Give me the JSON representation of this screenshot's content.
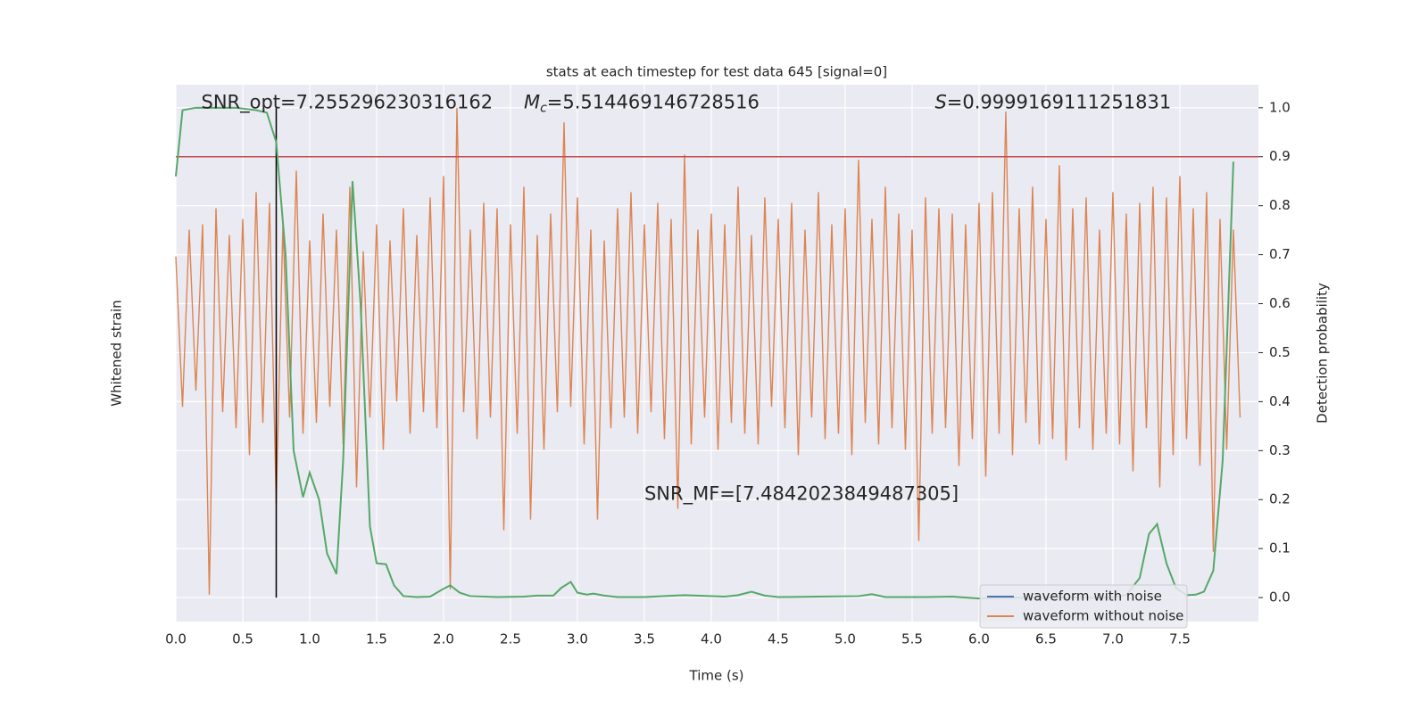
{
  "chart_data": {
    "type": "line",
    "title": "stats at each timestep for test data 645 [signal=0]",
    "xlabel": "Time (s)",
    "ylabel": "Whitened strain",
    "y2label": "Detection probability",
    "xlim": [
      0,
      8.087
    ],
    "ylim": [
      -5.5,
      4.5
    ],
    "y2lim": [
      -0.049,
      1.047
    ],
    "xticks": [
      {
        "value": 0,
        "label": "0.0"
      },
      {
        "value": 0.5,
        "label": "0.5"
      },
      {
        "value": 1,
        "label": "1.0"
      },
      {
        "value": 1.5,
        "label": "1.5"
      },
      {
        "value": 2,
        "label": "2.0"
      },
      {
        "value": 2.5,
        "label": "2.5"
      },
      {
        "value": 3,
        "label": "3.0"
      },
      {
        "value": 3.5,
        "label": "3.5"
      },
      {
        "value": 4,
        "label": "4.0"
      },
      {
        "value": 4.5,
        "label": "4.5"
      },
      {
        "value": 5,
        "label": "5.0"
      },
      {
        "value": 5.5,
        "label": "5.5"
      },
      {
        "value": 6,
        "label": "6.0"
      },
      {
        "value": 6.5,
        "label": "6.5"
      },
      {
        "value": 7,
        "label": "7.0"
      },
      {
        "value": 7.5,
        "label": "7.5"
      }
    ],
    "y2ticks": [
      {
        "value": 0,
        "label": "0.0"
      },
      {
        "value": 0.1,
        "label": "0.1"
      },
      {
        "value": 0.2,
        "label": "0.2"
      },
      {
        "value": 0.3,
        "label": "0.3"
      },
      {
        "value": 0.4,
        "label": "0.4"
      },
      {
        "value": 0.5,
        "label": "0.5"
      },
      {
        "value": 0.6,
        "label": "0.6"
      },
      {
        "value": 0.7,
        "label": "0.7"
      },
      {
        "value": 0.8,
        "label": "0.8"
      },
      {
        "value": 0.9,
        "label": "0.9"
      },
      {
        "value": 1,
        "label": "1.0"
      }
    ],
    "grid": true,
    "legend": "lower right",
    "series": [
      {
        "name": "waveform with noise",
        "color": "#4c72b0",
        "x": [],
        "values": []
      },
      {
        "name": "waveform without noise",
        "color": "#dd8452",
        "x": [
          0,
          0.05,
          0.1,
          0.15,
          0.2,
          0.25,
          0.3,
          0.35,
          0.4,
          0.45,
          0.5,
          0.55,
          0.6,
          0.65,
          0.7,
          0.75,
          0.8,
          0.85,
          0.9,
          0.95,
          1,
          1.05,
          1.1,
          1.15,
          1.2,
          1.25,
          1.3,
          1.35,
          1.4,
          1.45,
          1.5,
          1.55,
          1.6,
          1.65,
          1.7,
          1.75,
          1.8,
          1.85,
          1.9,
          1.95,
          2,
          2.05,
          2.1,
          2.15,
          2.2,
          2.25,
          2.3,
          2.35,
          2.4,
          2.45,
          2.5,
          2.55,
          2.6,
          2.65,
          2.7,
          2.75,
          2.8,
          2.85,
          2.9,
          2.95,
          3,
          3.05,
          3.1,
          3.15,
          3.2,
          3.25,
          3.3,
          3.35,
          3.4,
          3.45,
          3.5,
          3.55,
          3.6,
          3.65,
          3.7,
          3.75,
          3.8,
          3.85,
          3.9,
          3.95,
          4,
          4.05,
          4.1,
          4.15,
          4.2,
          4.25,
          4.3,
          4.35,
          4.4,
          4.45,
          4.5,
          4.55,
          4.6,
          4.65,
          4.7,
          4.75,
          4.8,
          4.85,
          4.9,
          4.95,
          5,
          5.05,
          5.1,
          5.15,
          5.2,
          5.25,
          5.3,
          5.35,
          5.4,
          5.45,
          5.5,
          5.55,
          5.6,
          5.65,
          5.7,
          5.75,
          5.8,
          5.85,
          5.9,
          5.95,
          6,
          6.05,
          6.1,
          6.15,
          6.2,
          6.25,
          6.3,
          6.35,
          6.4,
          6.45,
          6.5,
          6.55,
          6.6,
          6.65,
          6.7,
          6.75,
          6.8,
          6.85,
          6.9,
          6.95,
          7,
          7.05,
          7.1,
          7.15,
          7.2,
          7.25,
          7.3,
          7.35,
          7.4,
          7.45,
          7.5,
          7.55,
          7.6,
          7.65,
          7.7,
          7.75,
          7.8,
          7.85,
          7.9,
          7.95
        ],
        "values": [
          1.3,
          -1.5,
          1.8,
          -1.2,
          1.9,
          -5.0,
          2.2,
          -1.6,
          1.7,
          -1.9,
          2.0,
          -2.4,
          2.5,
          -1.8,
          2.3,
          -3.3,
          1.9,
          -1.7,
          2.9,
          -2.0,
          1.6,
          -1.8,
          2.1,
          -1.5,
          1.8,
          -2.2,
          2.6,
          -3.0,
          1.4,
          -1.7,
          1.9,
          -2.3,
          1.6,
          -1.4,
          2.2,
          -2.0,
          1.7,
          -1.6,
          2.4,
          -1.9,
          2.8,
          -4.9,
          4.07,
          -1.6,
          1.8,
          -2.1,
          2.3,
          -1.7,
          2.2,
          -3.8,
          1.9,
          -2.0,
          2.6,
          -3.6,
          1.7,
          -2.3,
          2.1,
          -1.6,
          3.8,
          -1.5,
          2.4,
          -2.2,
          1.8,
          -3.6,
          1.6,
          -1.9,
          2.2,
          -1.7,
          2.5,
          -2.0,
          1.9,
          -1.6,
          2.3,
          -2.1,
          2.0,
          -3.4,
          3.2,
          -2.2,
          1.8,
          -1.7,
          2.1,
          -2.3,
          1.9,
          -1.8,
          2.6,
          -2.0,
          1.7,
          -2.2,
          2.4,
          -1.5,
          2.0,
          -1.9,
          2.3,
          -2.4,
          1.8,
          -1.7,
          2.5,
          -2.1,
          1.9,
          -2.0,
          2.2,
          -2.4,
          3.1,
          -1.8,
          2.0,
          -2.2,
          2.6,
          -1.9,
          2.1,
          -2.3,
          1.8,
          -4.0,
          2.4,
          -2.0,
          2.2,
          -1.9,
          2.1,
          -2.6,
          1.9,
          -2.1,
          2.3,
          -2.8,
          2.5,
          -2.0,
          4.0,
          -2.4,
          2.2,
          -1.8,
          2.6,
          -2.2,
          2.0,
          -2.1,
          3.0,
          -2.5,
          2.2,
          -1.9,
          2.4,
          -2.3,
          1.8,
          -2.0,
          2.5,
          -2.2,
          2.1,
          -2.7,
          2.3,
          -1.9,
          2.6,
          -3.0,
          2.4,
          -2.4,
          2.8,
          -2.1,
          2.2,
          -2.6,
          2.5,
          -4.2,
          2.0,
          -2.3,
          1.8,
          -1.7
        ]
      },
      {
        "color": "#55a868",
        "axis": "y2",
        "x": [
          0,
          0.05,
          0.15,
          0.3,
          0.45,
          0.6,
          0.68,
          0.75,
          0.82,
          0.88,
          0.95,
          1,
          1.07,
          1.13,
          1.2,
          1.25,
          1.32,
          1.38,
          1.45,
          1.5,
          1.57,
          1.63,
          1.7,
          1.8,
          1.9,
          2,
          2.05,
          2.12,
          2.2,
          2.4,
          2.6,
          2.7,
          2.82,
          2.88,
          2.95,
          3,
          3.07,
          3.12,
          3.2,
          3.3,
          3.5,
          3.8,
          4.1,
          4.2,
          4.3,
          4.4,
          4.5,
          4.8,
          5.1,
          5.2,
          5.3,
          5.6,
          5.8,
          6,
          6.3,
          6.7,
          7,
          7.1,
          7.2,
          7.27,
          7.33,
          7.4,
          7.47,
          7.55,
          7.62,
          7.68,
          7.75,
          7.82,
          7.9
        ],
        "values": [
          0.86,
          0.995,
          1.0,
          1.0,
          1.0,
          0.995,
          0.99,
          0.93,
          0.7,
          0.3,
          0.205,
          0.255,
          0.2,
          0.09,
          0.048,
          0.28,
          0.85,
          0.6,
          0.145,
          0.07,
          0.068,
          0.025,
          0.003,
          0.001,
          0.002,
          0.018,
          0.025,
          0.01,
          0.003,
          0.001,
          0.002,
          0.004,
          0.004,
          0.02,
          0.032,
          0.01,
          0.006,
          0.008,
          0.004,
          0.001,
          0.001,
          0.005,
          0.002,
          0.005,
          0.012,
          0.004,
          0.001,
          0.002,
          0.003,
          0.007,
          0.001,
          0.001,
          0.002,
          -0.002,
          0,
          0,
          0,
          0.005,
          0.04,
          0.13,
          0.15,
          0.07,
          0.02,
          0.005,
          0.006,
          0.012,
          0.055,
          0.28,
          0.89
        ]
      }
    ],
    "threshold": {
      "y": 0.9,
      "color": "#c44e52",
      "axis": "y2"
    },
    "marker": {
      "x": 0.75,
      "ymin": 0,
      "ymax": 1,
      "color": "#000000",
      "axis": "y2"
    },
    "annotations": [
      {
        "text": "SNR_opt=7.255296230316162",
        "x": 0.19,
        "y": 1.01
      },
      {
        "symbol": "M",
        "subscript": "c",
        "text": "=5.514469146728516",
        "x": 2.6,
        "y": 1.01
      },
      {
        "symbol": "S",
        "text": "=0.9999169111251831",
        "x": 5.67,
        "y": 1.01
      },
      {
        "text": "SNR_MF=[7.4842023849487305]",
        "x": 3.5,
        "y": 0.21
      }
    ]
  }
}
